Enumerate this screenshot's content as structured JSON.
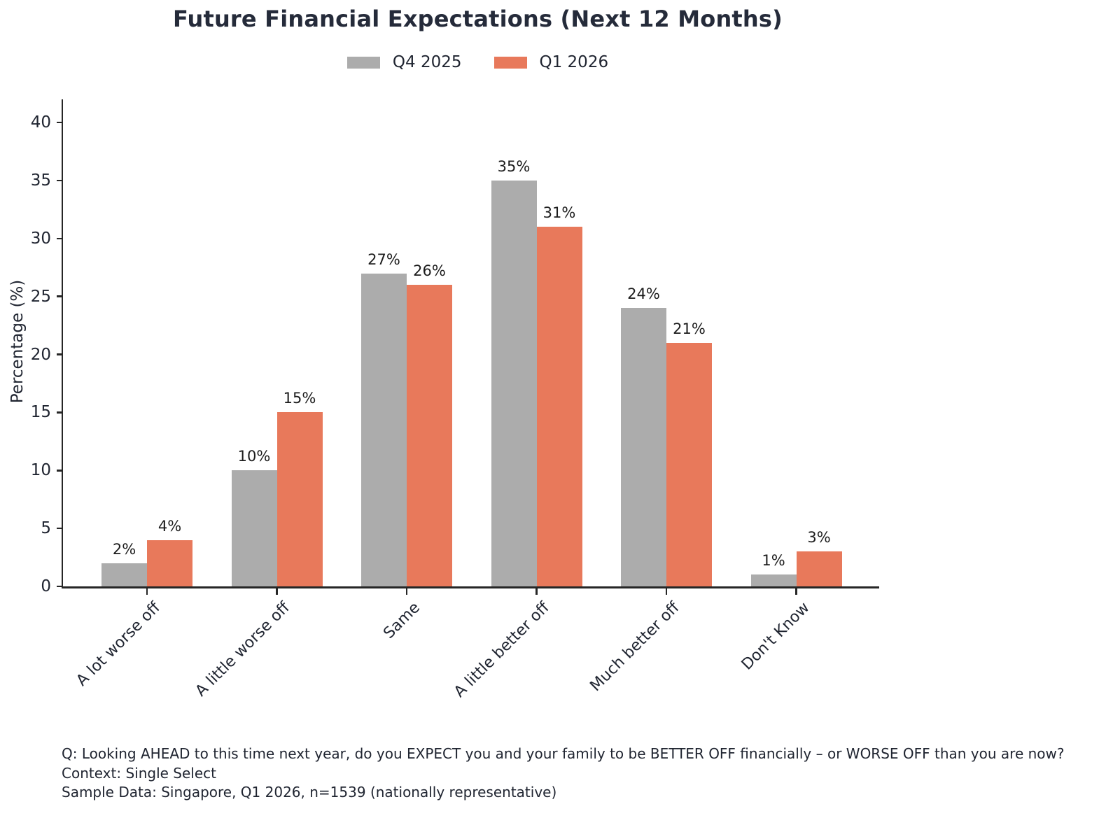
{
  "figure": {
    "footer_lines": [
      "Q: Looking AHEAD to this time next year, do you EXPECT you and your family to be BETTER OFF financially – or WORSE OFF than you are now?",
      "Context: Single Select",
      "Sample Data: Singapore, Q1 2026, n=1539 (nationally representative)"
    ]
  },
  "chart_data": {
    "type": "bar",
    "title": "Future Financial Expectations (Next 12 Months)",
    "categories": [
      "A lot worse off",
      "A little worse off",
      "Same",
      "A little better off",
      "Much better off",
      "Don't Know"
    ],
    "series": [
      {
        "name": "Q4 2025",
        "color": "#acacac",
        "values": [
          2,
          10,
          27,
          35,
          24,
          1
        ]
      },
      {
        "name": "Q1 2026",
        "color": "#e8795b",
        "values": [
          4,
          15,
          26,
          31,
          21,
          3
        ]
      }
    ],
    "value_label_format": "{v}%",
    "xlabel": "",
    "ylabel": "Percentage (%)",
    "ylim": [
      0,
      42
    ],
    "yticks": [
      0,
      5,
      10,
      15,
      20,
      25,
      30,
      35,
      40
    ],
    "grid": false,
    "legend_position": "top-center",
    "bar_label_suffix": "%",
    "spines": [
      "left",
      "bottom"
    ],
    "text_color": "#1f2430",
    "spine_color": "#262626"
  }
}
